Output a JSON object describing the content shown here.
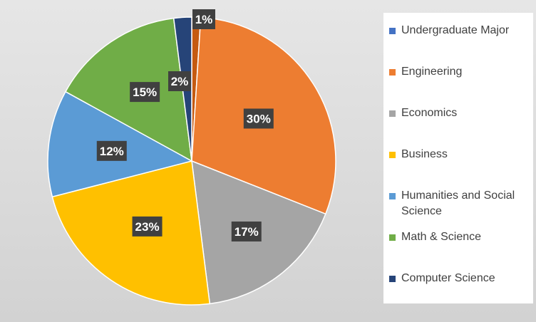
{
  "chart_data": {
    "type": "pie",
    "title": "",
    "categories": [
      "Undergraduate Major",
      "Engineering",
      "Economics",
      "Business",
      "Humanities and Social Science",
      "Math & Science",
      "Computer Science"
    ],
    "values": [
      1,
      30,
      17,
      23,
      12,
      15,
      2
    ],
    "value_labels": [
      "1%",
      "30%",
      "17%",
      "23%",
      "12%",
      "15%",
      "2%"
    ],
    "colors": [
      "#c55a11",
      "#ed7d31",
      "#a5a5a5",
      "#ffc000",
      "#5b9bd5",
      "#70ad47",
      "#264478"
    ],
    "legend_colors": [
      "#4472c4",
      "#ed7d31",
      "#a5a5a5",
      "#ffc000",
      "#5b9bd5",
      "#70ad47",
      "#264478"
    ],
    "legend_position": "right"
  }
}
